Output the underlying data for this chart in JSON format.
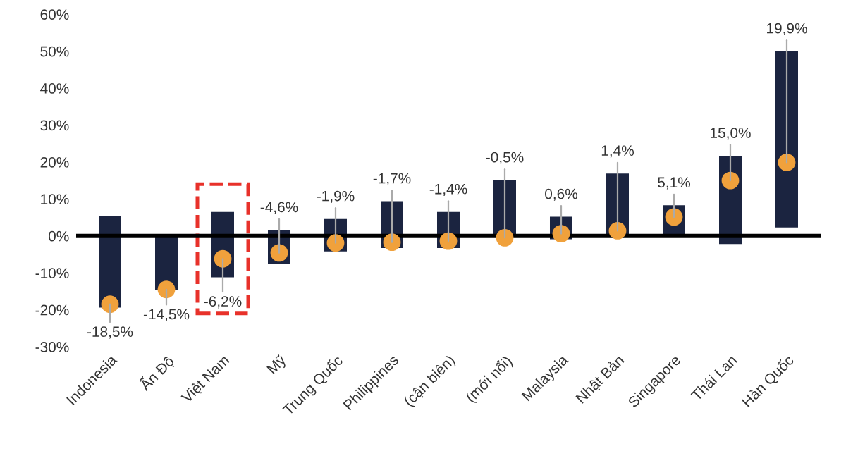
{
  "chart_data": {
    "type": "bar",
    "categories": [
      "Indonesia",
      "Ấn Độ",
      "Việt Nam",
      "Mỹ",
      "Trung Quốc",
      "Philippines",
      "(cận biên)",
      "(mới nổi)",
      "Malaysia",
      "Nhật Bản",
      "Singapore",
      "Thái Lan",
      "Hàn Quốc"
    ],
    "series": [
      {
        "type": "bar",
        "color": "#1b2440",
        "base": [
          -19.4,
          -14.7,
          -11.2,
          -7.5,
          -4.2,
          -3.3,
          -3.3,
          0,
          -0.9,
          0,
          0,
          -2.2,
          2.3
        ],
        "values": [
          24.7,
          15.2,
          17.7,
          9.1,
          8.8,
          12.7,
          9.8,
          15.1,
          6.1,
          16.9,
          8.3,
          23.9,
          47.7
        ]
      },
      {
        "type": "scatter",
        "color": "#f0a13c",
        "x": [
          "Indonesia",
          "Ấn Độ",
          "Việt Nam",
          "Mỹ",
          "Trung Quốc",
          "Philippines",
          "(cận biên)",
          "(mới nổi)",
          "Malaysia",
          "Nhật Bản",
          "Singapore",
          "Thái Lan",
          "Hàn Quốc"
        ],
        "values": [
          -18.5,
          -14.5,
          -6.2,
          -4.6,
          -1.9,
          -1.7,
          -1.4,
          -0.5,
          0.6,
          1.4,
          5.1,
          15.0,
          19.9
        ],
        "value_labels": [
          "-18,5%",
          "-14,5%",
          "-6,2%",
          "-4,6%",
          "-1,9%",
          "-1,7%",
          "-1,4%",
          "-0,5%",
          "0,6%",
          "1,4%",
          "5,1%",
          "15,0%",
          "19,9%"
        ]
      }
    ],
    "ylim": [
      -30,
      60
    ],
    "yticks": [
      {
        "value": -30,
        "label": "-30%"
      },
      {
        "value": -20,
        "label": "-20%"
      },
      {
        "value": -10,
        "label": "-10%"
      },
      {
        "value": 0,
        "label": "0%"
      },
      {
        "value": 10,
        "label": "10%"
      },
      {
        "value": 20,
        "label": "20%"
      },
      {
        "value": 30,
        "label": "30%"
      },
      {
        "value": 40,
        "label": "40%"
      },
      {
        "value": 50,
        "label": "50%"
      },
      {
        "value": 60,
        "label": "60%"
      }
    ],
    "ref_lines": [
      {
        "axis": "y",
        "value": 0,
        "color": "#000000",
        "line_style": "solid"
      }
    ],
    "grid": false,
    "legend": false
  }
}
